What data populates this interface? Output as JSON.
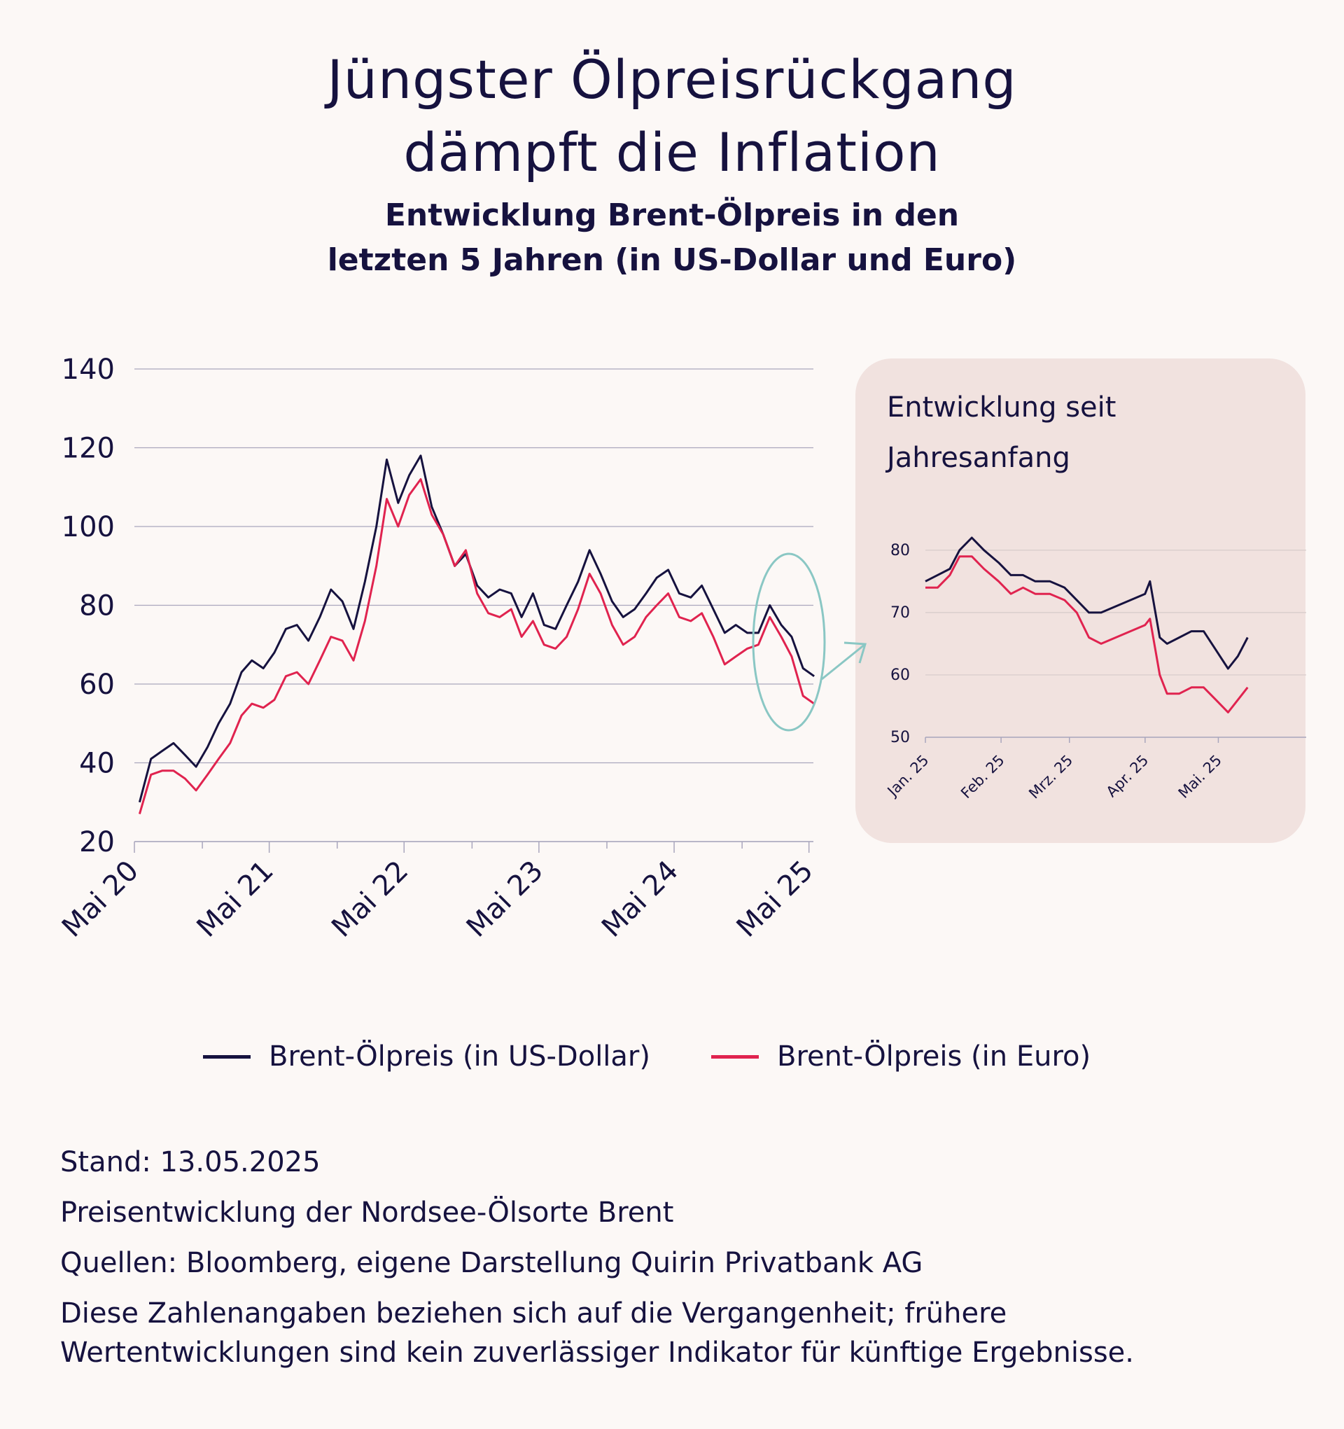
{
  "title_line1": "Jüngster Ölpreisrückgang",
  "title_line2": "dämpft die Inflation",
  "subtitle_line1": "Entwicklung Brent-Ölpreis in den",
  "subtitle_line2": "letzten 5 Jahren (in US-Dollar und Euro)",
  "inset_title_line1": "Entwicklung seit",
  "inset_title_line2": "Jahresanfang",
  "legend": {
    "usd": "Brent-Ölpreis (in US-Dollar)",
    "eur": "Brent-Ölpreis (in Euro)"
  },
  "footer": {
    "stand": "Stand: 13.05.2025",
    "line2": "Preisentwicklung der Nordsee-Ölsorte Brent",
    "line3": "Quellen: Bloomberg, eigene Darstellung Quirin Privatbank AG",
    "line4a": "Diese Zahlenangaben beziehen sich auf die Vergangenheit; frühere",
    "line4b": "Wertentwicklungen sind kein zuverlässiger Indikator für künftige Ergebnisse."
  },
  "colors": {
    "usd": "#16123f",
    "eur": "#e0234f",
    "highlight": "#8ac7c4",
    "grid": "#a9a6bd",
    "inset_bg": "#f1e2df"
  },
  "chart_data": [
    {
      "type": "line",
      "xlabel": "",
      "ylabel": "",
      "ylim": [
        20,
        140
      ],
      "yticks": [
        20,
        40,
        60,
        80,
        100,
        120,
        140
      ],
      "xticks": [
        "Mai 20",
        "Mai 21",
        "Mai 22",
        "Mai 23",
        "Mai 24",
        "Mai 25"
      ],
      "grid": true,
      "x": [
        "2020-05",
        "2020-06",
        "2020-07",
        "2020-08",
        "2020-09",
        "2020-10",
        "2020-11",
        "2020-12",
        "2021-01",
        "2021-02",
        "2021-03",
        "2021-04",
        "2021-05",
        "2021-06",
        "2021-07",
        "2021-08",
        "2021-09",
        "2021-10",
        "2021-11",
        "2021-12",
        "2022-01",
        "2022-02",
        "2022-03",
        "2022-04",
        "2022-05",
        "2022-06",
        "2022-07",
        "2022-08",
        "2022-09",
        "2022-10",
        "2022-11",
        "2022-12",
        "2023-01",
        "2023-02",
        "2023-03",
        "2023-04",
        "2023-05",
        "2023-06",
        "2023-07",
        "2023-08",
        "2023-09",
        "2023-10",
        "2023-11",
        "2023-12",
        "2024-01",
        "2024-02",
        "2024-03",
        "2024-04",
        "2024-05",
        "2024-06",
        "2024-07",
        "2024-08",
        "2024-09",
        "2024-10",
        "2024-11",
        "2024-12",
        "2025-01",
        "2025-02",
        "2025-03",
        "2025-04",
        "2025-05"
      ],
      "series": [
        {
          "name": "Brent-Ölpreis (in US-Dollar)",
          "values": [
            30,
            41,
            43,
            45,
            42,
            39,
            44,
            50,
            55,
            63,
            66,
            64,
            68,
            74,
            75,
            71,
            77,
            84,
            81,
            74,
            86,
            100,
            117,
            106,
            113,
            118,
            105,
            98,
            90,
            93,
            85,
            82,
            84,
            83,
            77,
            83,
            75,
            74,
            80,
            86,
            94,
            88,
            81,
            77,
            79,
            83,
            87,
            89,
            83,
            82,
            85,
            79,
            73,
            75,
            73,
            73,
            80,
            75,
            72,
            64,
            62
          ]
        },
        {
          "name": "Brent-Ölpreis (in Euro)",
          "values": [
            27,
            37,
            38,
            38,
            36,
            33,
            37,
            41,
            45,
            52,
            55,
            54,
            56,
            62,
            63,
            60,
            66,
            72,
            71,
            66,
            76,
            90,
            107,
            100,
            108,
            112,
            103,
            98,
            90,
            94,
            83,
            78,
            77,
            79,
            72,
            76,
            70,
            69,
            72,
            79,
            88,
            83,
            75,
            70,
            72,
            77,
            80,
            83,
            77,
            76,
            78,
            72,
            65,
            67,
            69,
            70,
            77,
            72,
            67,
            57,
            55
          ]
        }
      ]
    },
    {
      "type": "line",
      "title": "Entwicklung seit Jahresanfang",
      "xlabel": "",
      "ylabel": "",
      "ylim": [
        50,
        82
      ],
      "yticks": [
        50,
        60,
        70,
        80
      ],
      "xticks": [
        "Jan. 25",
        "Feb. 25",
        "Mrz. 25",
        "Apr. 25",
        "Mai. 25"
      ],
      "grid": true,
      "x": [
        "2025-01-01",
        "2025-01-06",
        "2025-01-11",
        "2025-01-15",
        "2025-01-20",
        "2025-01-25",
        "2025-01-31",
        "2025-02-05",
        "2025-02-10",
        "2025-02-15",
        "2025-02-21",
        "2025-02-27",
        "2025-03-04",
        "2025-03-09",
        "2025-03-14",
        "2025-03-20",
        "2025-03-26",
        "2025-04-01",
        "2025-04-03",
        "2025-04-07",
        "2025-04-10",
        "2025-04-15",
        "2025-04-20",
        "2025-04-25",
        "2025-04-30",
        "2025-05-05",
        "2025-05-09",
        "2025-05-13"
      ],
      "series": [
        {
          "name": "Brent-Ölpreis (in US-Dollar)",
          "values": [
            75,
            76,
            77,
            80,
            82,
            80,
            78,
            76,
            76,
            75,
            75,
            74,
            72,
            70,
            70,
            71,
            72,
            73,
            75,
            66,
            65,
            66,
            67,
            67,
            64,
            61,
            63,
            66
          ]
        },
        {
          "name": "Brent-Ölpreis (in Euro)",
          "values": [
            74,
            74,
            76,
            79,
            79,
            77,
            75,
            73,
            74,
            73,
            73,
            72,
            70,
            66,
            65,
            66,
            67,
            68,
            69,
            60,
            57,
            57,
            58,
            58,
            56,
            54,
            56,
            58
          ]
        }
      ]
    }
  ]
}
